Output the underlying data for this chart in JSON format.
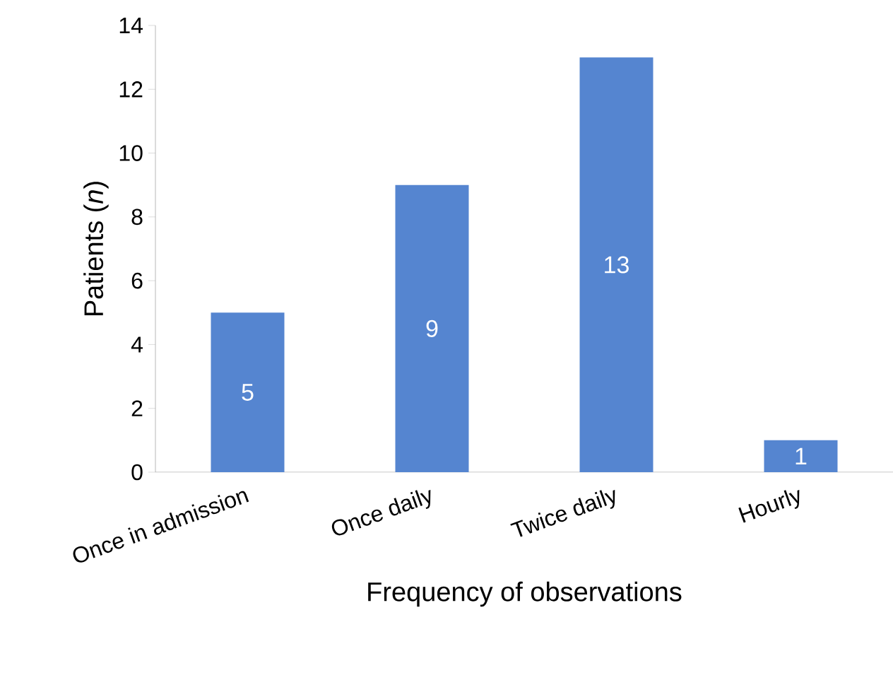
{
  "chart_data": {
    "type": "bar",
    "xlabel": "Frequency of observations",
    "ylabel": "Patients (*n*)",
    "categories": [
      "Once in admission",
      "Once daily",
      "Twice daily",
      "Hourly"
    ],
    "values": [
      5,
      9,
      13,
      1
    ],
    "color": "#5585d0",
    "ylim": [
      0,
      14
    ],
    "yticks": [
      0,
      2,
      4,
      6,
      8,
      10,
      12,
      14
    ],
    "data_labels": true,
    "grid": false
  }
}
